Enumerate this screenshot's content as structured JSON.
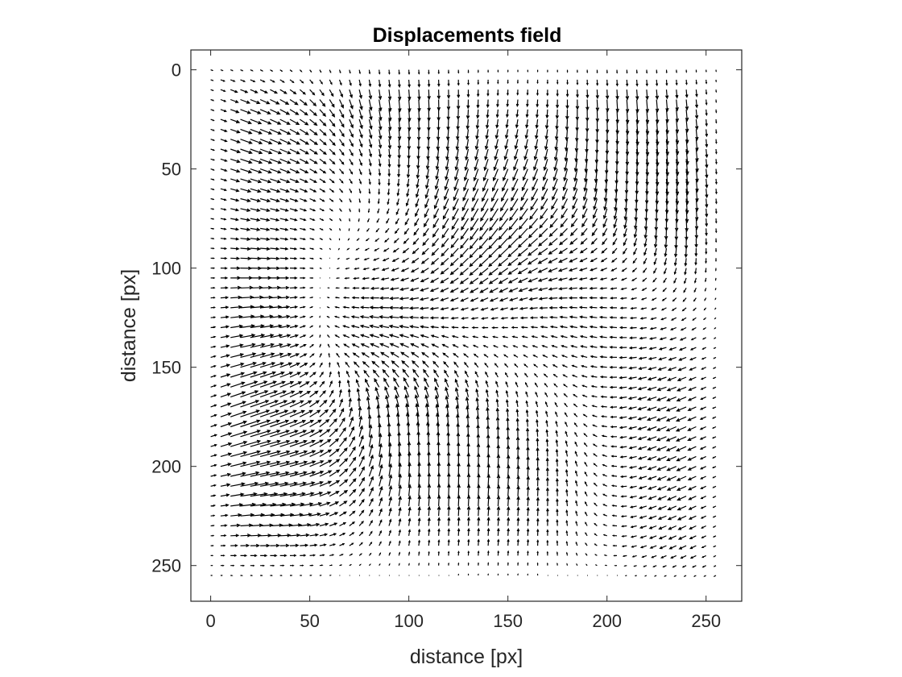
{
  "chart_data": {
    "type": "quiver",
    "title": "Displacements field",
    "xlabel": "distance [px]",
    "ylabel": "distance [px]",
    "xlim": [
      -10,
      268
    ],
    "ylim": [
      -10,
      268
    ],
    "y_direction": "reverse",
    "xticks": [
      0,
      50,
      100,
      150,
      200,
      250
    ],
    "yticks": [
      0,
      50,
      100,
      150,
      200,
      250
    ],
    "xtick_labels": [
      "0",
      "50",
      "100",
      "150",
      "200",
      "250"
    ],
    "ytick_labels": [
      "0",
      "50",
      "100",
      "150",
      "200",
      "250"
    ],
    "grid_spacing": 5,
    "grid_range": [
      0,
      255
    ],
    "arrow_scale": 1.6,
    "field_sources": [
      {
        "x": 20,
        "y": 35,
        "u": 3.5,
        "v": 1.2
      },
      {
        "x": 20,
        "y": 120,
        "u": 3.8,
        "v": 0.0
      },
      {
        "x": 15,
        "y": 180,
        "u": 3.5,
        "v": -2.2
      },
      {
        "x": 30,
        "y": 210,
        "u": 3.5,
        "v": 0.6
      },
      {
        "x": 95,
        "y": 5,
        "u": 0.2,
        "v": 3.5
      },
      {
        "x": 140,
        "y": 70,
        "u": 0.6,
        "v": 3.2
      },
      {
        "x": 150,
        "y": 80,
        "u": -3.0,
        "v": 0.4
      },
      {
        "x": 100,
        "y": 190,
        "u": 0.0,
        "v": -4.2
      },
      {
        "x": 80,
        "y": 130,
        "u": -3.4,
        "v": 0.0
      },
      {
        "x": 210,
        "y": 30,
        "u": 0.3,
        "v": 3.8
      },
      {
        "x": 240,
        "y": 170,
        "u": -2.5,
        "v": 1.2
      },
      {
        "x": 240,
        "y": 230,
        "u": -2.0,
        "v": 1.0
      },
      {
        "x": 250,
        "y": 65,
        "u": 0.4,
        "v": 3.4
      },
      {
        "x": 190,
        "y": 120,
        "u": -1.5,
        "v": -0.8
      },
      {
        "x": 160,
        "y": 210,
        "u": 0.3,
        "v": -2.5
      }
    ]
  }
}
